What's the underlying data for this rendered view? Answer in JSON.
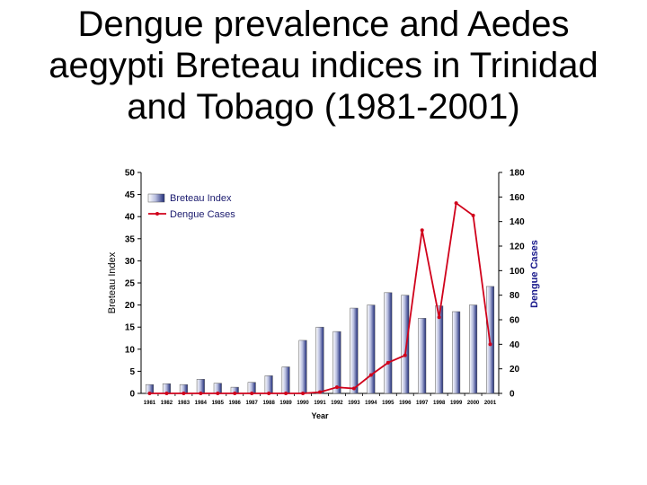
{
  "slide": {
    "title": "Dengue prevalence and Aedes aegypti Breteau indices in Trinidad and Tobago (1981-2001)"
  },
  "chart_data": {
    "type": "bar",
    "categories": [
      "1981",
      "1982",
      "1983",
      "1984",
      "1985",
      "1986",
      "1987",
      "1988",
      "1989",
      "1990",
      "1991",
      "1992",
      "1993",
      "1994",
      "1995",
      "1996",
      "1997",
      "1998",
      "1999",
      "2000",
      "2001"
    ],
    "series": [
      {
        "name": "Breteau Index",
        "type": "bar",
        "axis": "left",
        "values": [
          2.0,
          2.2,
          2.0,
          3.2,
          2.3,
          1.4,
          2.5,
          4.0,
          6.0,
          12.0,
          15.0,
          14.0,
          19.3,
          20.0,
          22.8,
          22.2,
          17.0,
          19.8,
          18.5,
          20.0,
          24.2
        ]
      },
      {
        "name": "Dengue Cases",
        "type": "line",
        "axis": "right",
        "color": "#d0021b",
        "values": [
          0,
          0,
          0,
          0,
          0,
          0,
          0,
          0,
          0,
          0,
          1,
          5,
          4,
          15,
          25,
          31,
          133,
          62,
          155,
          145,
          40
        ]
      }
    ],
    "xlabel": "Year",
    "ylabel": "Breteau Index",
    "ylabel_right": "Dengue Cases",
    "ylim": [
      0,
      50
    ],
    "yticks": [
      0,
      5,
      10,
      15,
      20,
      25,
      30,
      35,
      40,
      45,
      50
    ],
    "ylim_right": [
      0,
      180
    ],
    "yticks_right": [
      0,
      20,
      40,
      60,
      80,
      100,
      120,
      140,
      160,
      180
    ],
    "legend_position": "top-left",
    "grid": false,
    "colors": {
      "bar_fill_light": "#ffffff",
      "bar_fill_dark": "#1e2a78",
      "line": "#d0021b",
      "right_axis_title": "#1a1a8c"
    }
  }
}
